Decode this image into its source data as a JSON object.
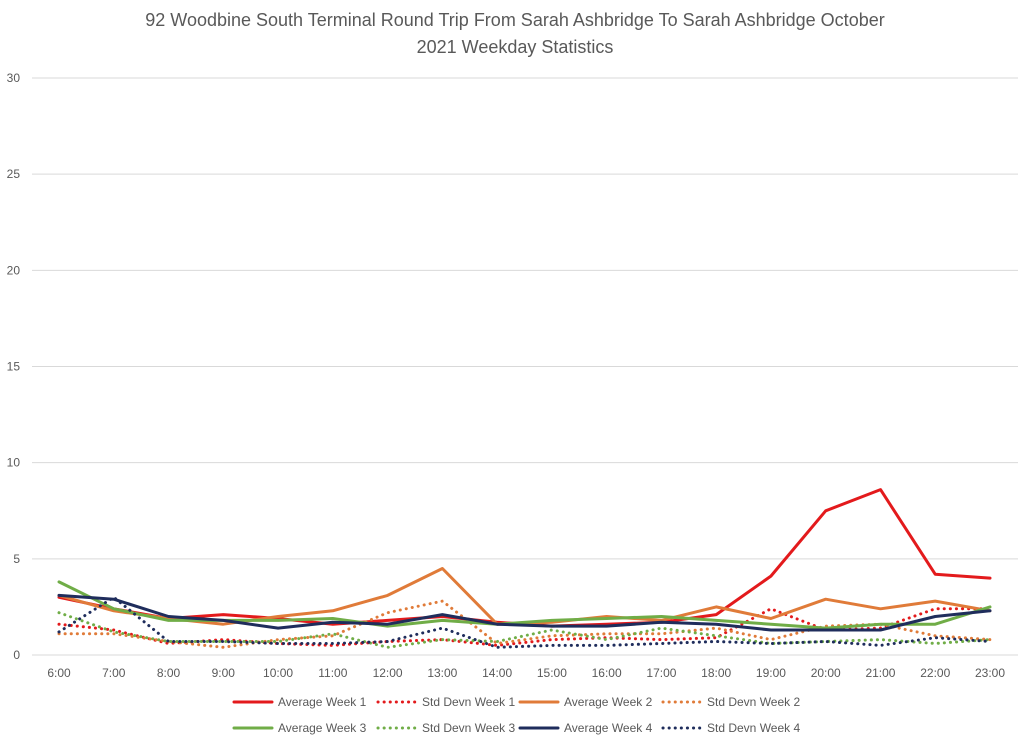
{
  "chart_data": {
    "type": "line",
    "title_line1": "92 Woodbine South Terminal Round Trip From Sarah Ashbridge To Sarah Ashbridge October",
    "title_line2": "2021 Weekday Statistics",
    "xlabel": "",
    "ylabel": "",
    "ylim": [
      0,
      30
    ],
    "yticks": [
      0,
      5,
      10,
      15,
      20,
      25,
      30
    ],
    "grid": true,
    "legend_position": "bottom",
    "categories": [
      "6:00",
      "7:00",
      "8:00",
      "9:00",
      "10:00",
      "11:00",
      "12:00",
      "13:00",
      "14:00",
      "15:00",
      "16:00",
      "17:00",
      "18:00",
      "19:00",
      "20:00",
      "21:00",
      "22:00",
      "23:00"
    ],
    "series": [
      {
        "name": "Average Week 1",
        "color": "#e31a1c",
        "style": "solid",
        "values": [
          3.0,
          2.4,
          1.9,
          2.1,
          1.9,
          1.6,
          1.8,
          2.0,
          1.7,
          1.5,
          1.6,
          1.7,
          2.1,
          4.1,
          7.5,
          8.6,
          4.2,
          4.0
        ]
      },
      {
        "name": "Std Devn Week 1",
        "color": "#e31a1c",
        "style": "dotted",
        "values": [
          1.6,
          1.3,
          0.6,
          0.8,
          0.6,
          0.5,
          0.7,
          0.8,
          0.5,
          0.8,
          0.9,
          0.8,
          0.9,
          2.4,
          1.3,
          1.4,
          2.4,
          2.4
        ]
      },
      {
        "name": "Average Week 2",
        "color": "#e07b39",
        "style": "solid",
        "values": [
          3.1,
          2.3,
          1.9,
          1.6,
          2.0,
          2.3,
          3.1,
          4.5,
          1.6,
          1.7,
          2.0,
          1.8,
          2.5,
          1.9,
          2.9,
          2.4,
          2.8,
          2.3
        ]
      },
      {
        "name": "Std Devn Week 2",
        "color": "#e07b39",
        "style": "dotted",
        "values": [
          1.1,
          1.1,
          0.7,
          0.4,
          0.8,
          1.0,
          2.2,
          2.8,
          0.6,
          1.0,
          1.1,
          1.1,
          1.4,
          0.8,
          1.5,
          1.6,
          1.0,
          0.8
        ]
      },
      {
        "name": "Average Week 3",
        "color": "#70ad47",
        "style": "solid",
        "values": [
          3.8,
          2.4,
          1.8,
          1.8,
          1.8,
          1.9,
          1.5,
          1.8,
          1.6,
          1.8,
          1.9,
          2.0,
          1.8,
          1.6,
          1.4,
          1.6,
          1.6,
          2.5
        ]
      },
      {
        "name": "Std Devn Week 3",
        "color": "#70ad47",
        "style": "dotted",
        "values": [
          2.2,
          1.2,
          0.7,
          0.7,
          0.7,
          1.1,
          0.4,
          0.8,
          0.7,
          1.3,
          0.8,
          1.4,
          1.0,
          0.6,
          0.7,
          0.8,
          0.6,
          0.8
        ]
      },
      {
        "name": "Average Week 4",
        "color": "#1f2d5c",
        "style": "solid",
        "values": [
          3.1,
          2.9,
          2.0,
          1.8,
          1.4,
          1.7,
          1.6,
          2.1,
          1.6,
          1.5,
          1.5,
          1.7,
          1.6,
          1.3,
          1.3,
          1.3,
          2.0,
          2.3
        ]
      },
      {
        "name": "Std Devn Week 4",
        "color": "#1f2d5c",
        "style": "dotted",
        "values": [
          1.2,
          3.0,
          0.7,
          0.7,
          0.6,
          0.6,
          0.7,
          1.4,
          0.4,
          0.5,
          0.5,
          0.6,
          0.7,
          0.6,
          0.7,
          0.5,
          0.9,
          0.7
        ]
      }
    ]
  }
}
